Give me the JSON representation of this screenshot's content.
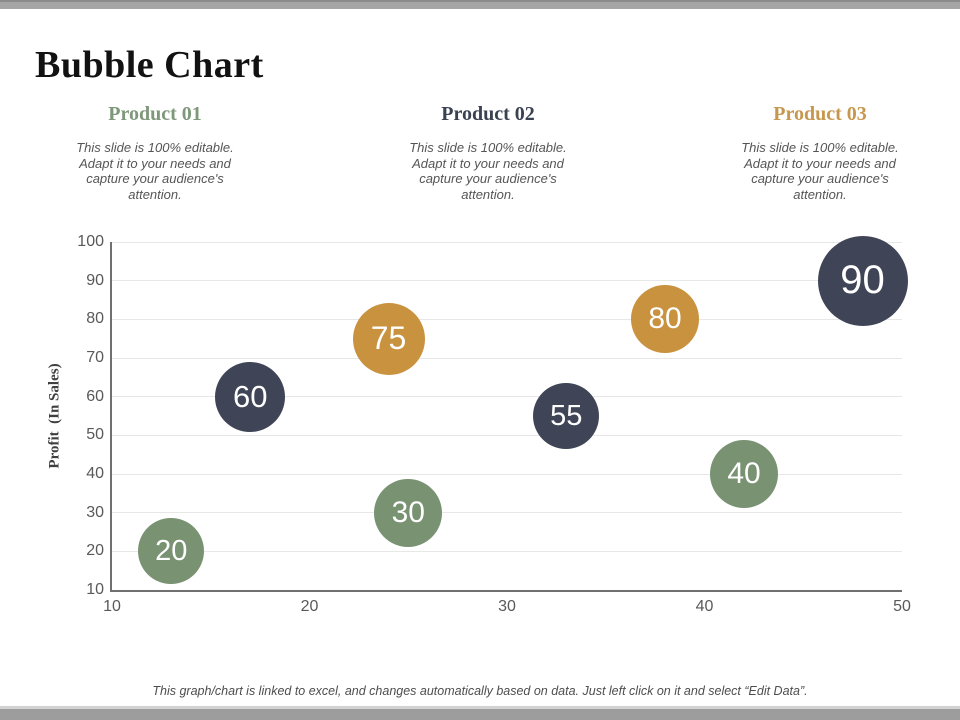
{
  "header": {
    "title": "Bubble Chart"
  },
  "products": [
    {
      "title": "Product 01",
      "description": "This slide is 100% editable. Adapt it to your needs and capture your audience's attention.",
      "accent_color": "#7e987a"
    },
    {
      "title": "Product 02",
      "description": "This slide is 100% editable. Adapt it to your needs and capture your audience's attention.",
      "accent_color": "#3a4150"
    },
    {
      "title": "Product 03",
      "description": "This slide is 100% editable. Adapt it to your needs and capture your audience's attention.",
      "accent_color": "#c6974e"
    }
  ],
  "chart_data": {
    "type": "scatter",
    "subtype": "bubble",
    "title": "",
    "xlabel": "",
    "ylabel": "Profit  (In Sales)",
    "xlim": [
      10,
      50
    ],
    "ylim": [
      10,
      100
    ],
    "x_ticks": [
      10,
      20,
      30,
      40,
      50
    ],
    "y_ticks": [
      10,
      20,
      30,
      40,
      50,
      60,
      70,
      80,
      90,
      100
    ],
    "grid": "horizontal-only",
    "legend": "none",
    "series": [
      {
        "name": "Product 01",
        "color": "#789272",
        "points": [
          {
            "x": 13,
            "y": 20,
            "label": "20",
            "size": 66
          },
          {
            "x": 25,
            "y": 30,
            "label": "30",
            "size": 68
          },
          {
            "x": 42,
            "y": 40,
            "label": "40",
            "size": 68
          }
        ]
      },
      {
        "name": "Product 02",
        "color": "#3f4557",
        "points": [
          {
            "x": 17,
            "y": 60,
            "label": "60",
            "size": 70
          },
          {
            "x": 33,
            "y": 55,
            "label": "55",
            "size": 66
          },
          {
            "x": 48,
            "y": 90,
            "label": "90",
            "size": 90
          }
        ]
      },
      {
        "name": "Product 03",
        "color": "#c8923f",
        "points": [
          {
            "x": 24,
            "y": 75,
            "label": "75",
            "size": 72
          },
          {
            "x": 38,
            "y": 80,
            "label": "80",
            "size": 68
          }
        ]
      }
    ]
  },
  "footer": {
    "note": "This graph/chart is linked to excel, and changes automatically based on data. Just left click on it and select “Edit Data”."
  },
  "colors": {
    "grid": "#e7e7e7",
    "axis": "#707070",
    "tick_text": "#595959",
    "bar": "#a5a5a5"
  }
}
